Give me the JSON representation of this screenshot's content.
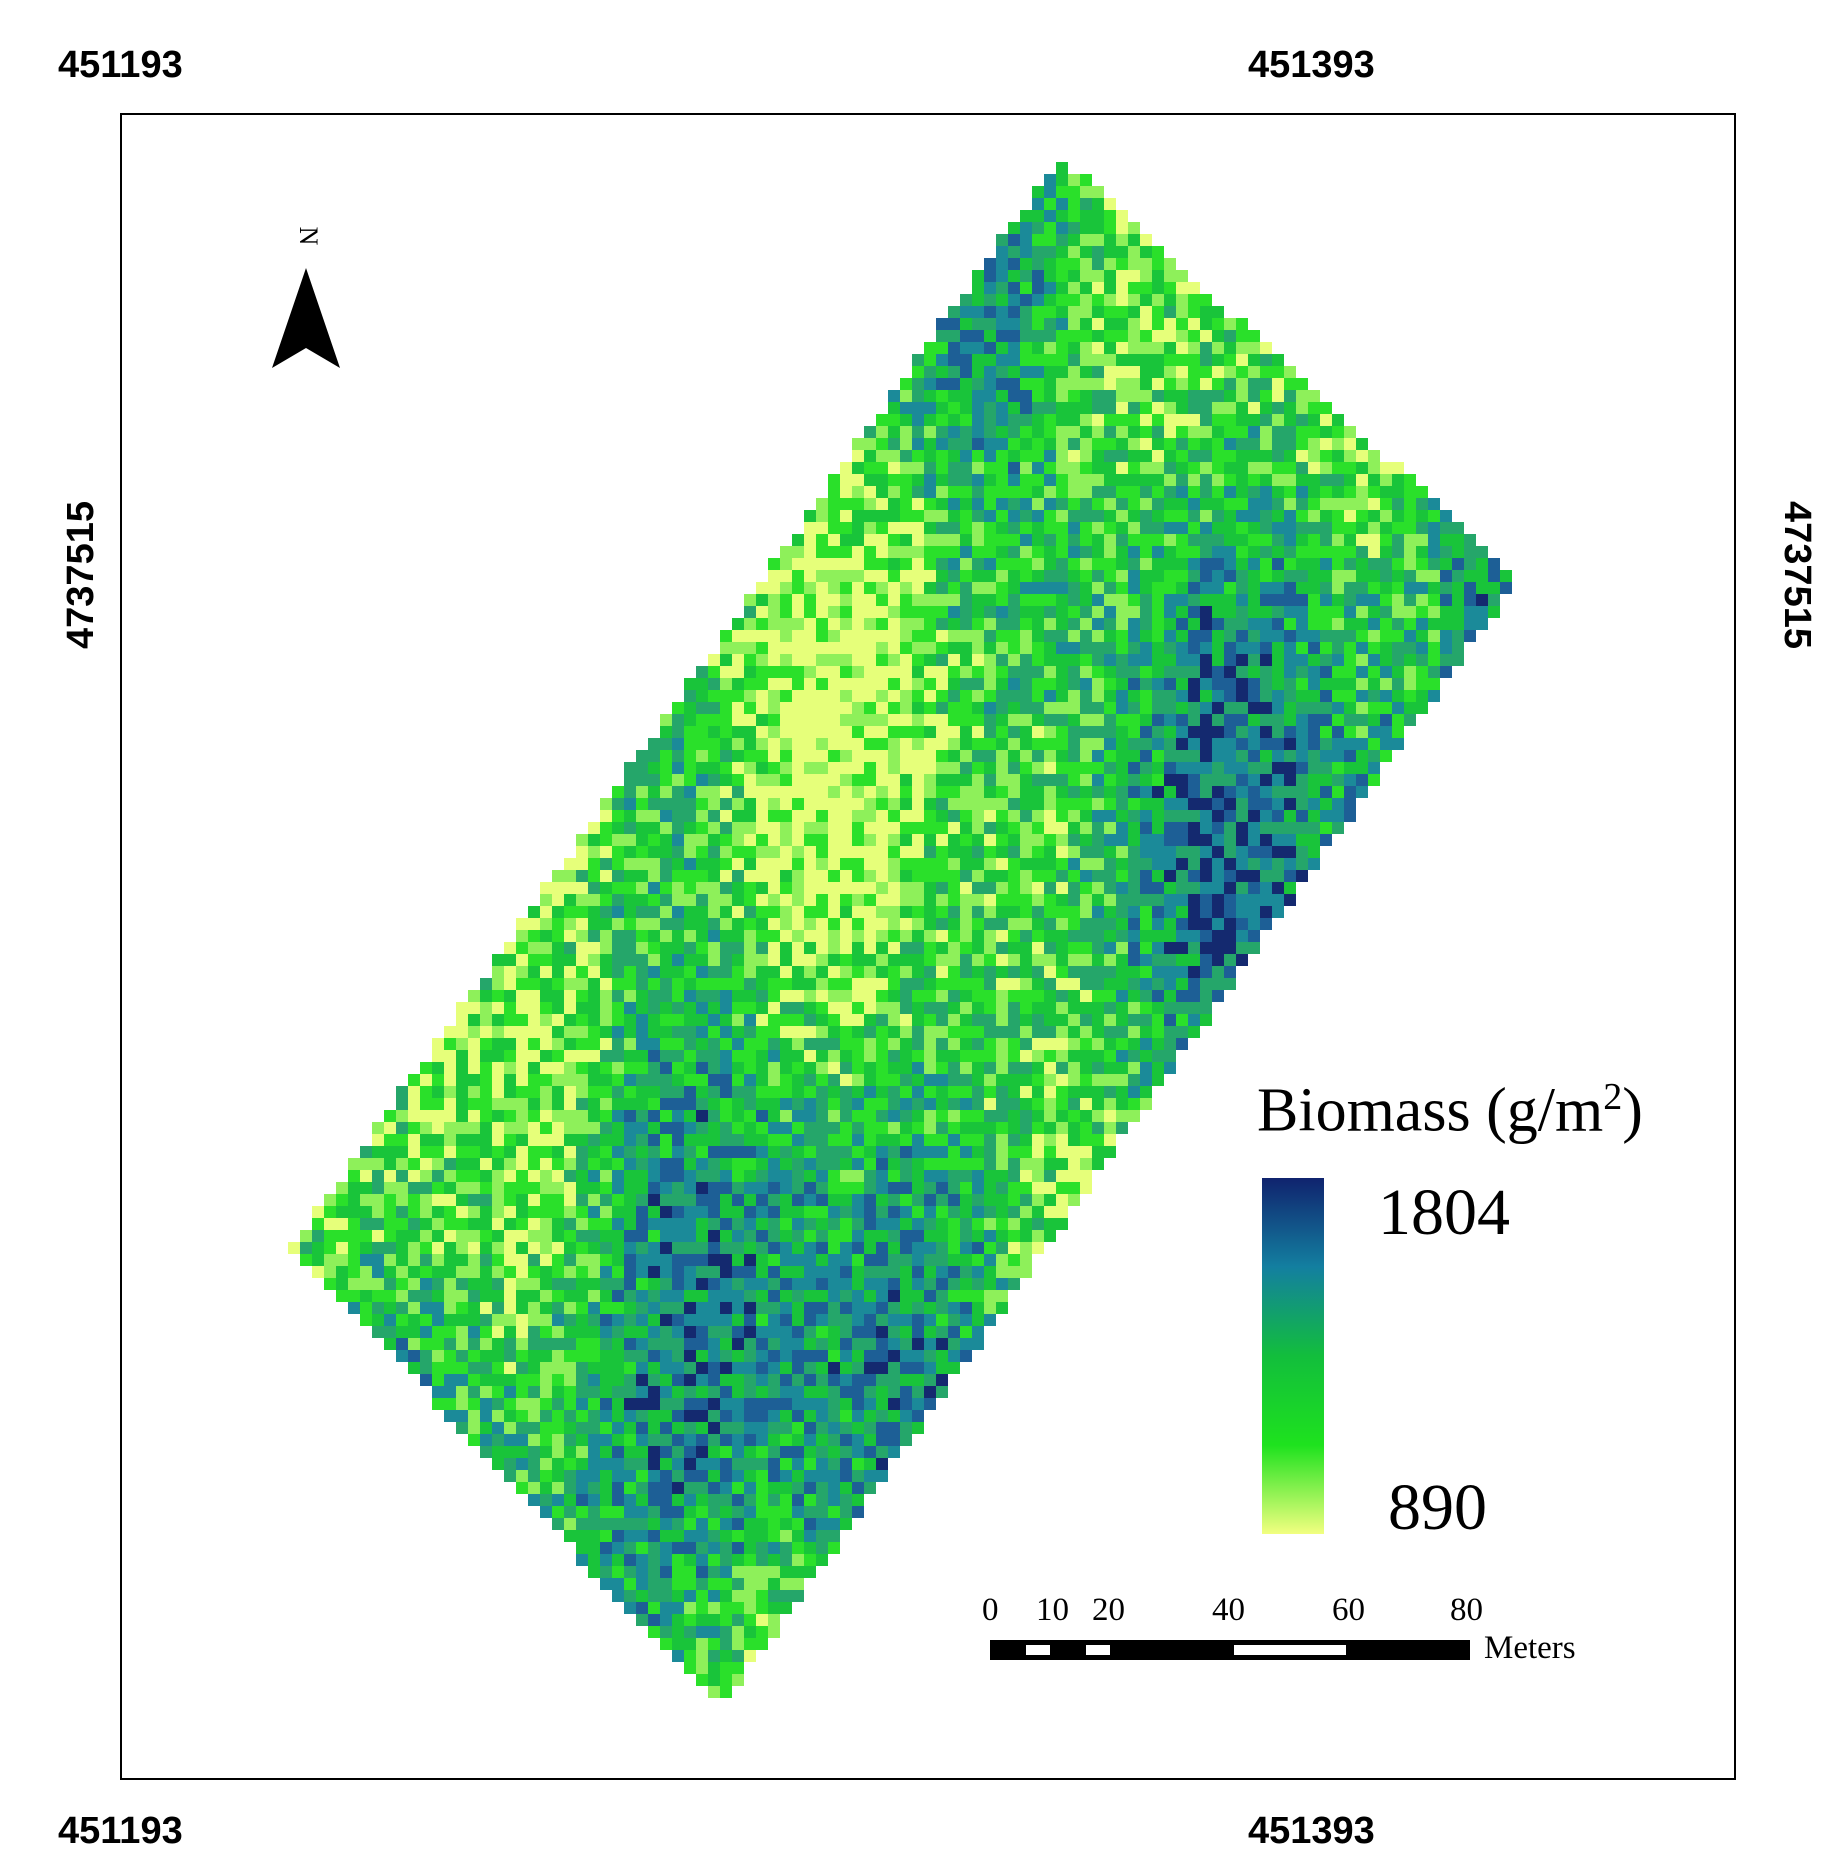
{
  "coordinates": {
    "top_left": "451193",
    "top_right": "451393",
    "bottom_left": "451193",
    "bottom_right": "451393",
    "left": "4737515",
    "right": "4737515"
  },
  "north_arrow": {
    "label": "N",
    "icon": "north-arrow-icon"
  },
  "legend": {
    "title": "Biomass (g/m",
    "title_sup": "2",
    "title_close": ")",
    "max": "1804",
    "min": "890",
    "colors": [
      "#10236e",
      "#137fa0",
      "#12be3c",
      "#1ee21e",
      "#f2ff80"
    ]
  },
  "scale_bar": {
    "ticks": [
      "0",
      "10",
      "20",
      "40",
      "60",
      "80"
    ],
    "unit": "Meters"
  },
  "field": {
    "palette": [
      "#14296f",
      "#1d5f96",
      "#1b8a99",
      "#25a66a",
      "#19c43a",
      "#2ae02a",
      "#8ef05a",
      "#e6ff7a"
    ]
  }
}
